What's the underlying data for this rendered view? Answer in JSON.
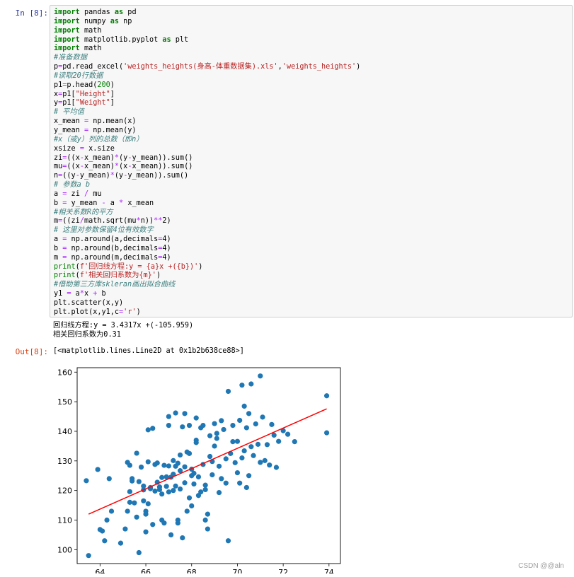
{
  "cell": {
    "in_prompt": "In  [8]:",
    "out_prompt": "Out[8]:",
    "code_lines": [
      [
        [
          "import",
          "kw"
        ],
        [
          " pandas ",
          ""
        ],
        [
          "as",
          "kw"
        ],
        [
          " pd",
          ""
        ]
      ],
      [
        [
          "import",
          "kw"
        ],
        [
          " numpy ",
          ""
        ],
        [
          "as",
          "kw"
        ],
        [
          " np",
          ""
        ]
      ],
      [
        [
          "import",
          "kw"
        ],
        [
          " math",
          ""
        ]
      ],
      [
        [
          "import",
          "kw"
        ],
        [
          " matplotlib.pyplot ",
          ""
        ],
        [
          "as",
          "kw"
        ],
        [
          " plt",
          ""
        ]
      ],
      [
        [
          "import",
          "kw"
        ],
        [
          " math",
          ""
        ]
      ],
      [
        [
          "#准备数据",
          "cm"
        ]
      ],
      [
        [
          "p",
          ""
        ],
        [
          "=",
          "op"
        ],
        [
          "pd.read_excel(",
          ""
        ],
        [
          "'weights_heights(身高-体重数据集).xls'",
          "str"
        ],
        [
          ",",
          ""
        ],
        [
          "'weights_heights'",
          "str"
        ],
        [
          ")",
          ""
        ]
      ],
      [
        [
          "#读取20行数据",
          "cm"
        ]
      ],
      [
        [
          "p1",
          ""
        ],
        [
          "=",
          "op"
        ],
        [
          "p.head(",
          ""
        ],
        [
          "200",
          "num"
        ],
        [
          ")",
          ""
        ]
      ],
      [
        [
          "x",
          ""
        ],
        [
          "=",
          "op"
        ],
        [
          "p1[",
          ""
        ],
        [
          "\"Height\"",
          "str"
        ],
        [
          "]",
          ""
        ]
      ],
      [
        [
          "y",
          ""
        ],
        [
          "=",
          "op"
        ],
        [
          "p1[",
          ""
        ],
        [
          "\"Weight\"",
          "str"
        ],
        [
          "]",
          ""
        ]
      ],
      [
        [
          "# 平均值",
          "cm"
        ]
      ],
      [
        [
          "x_mean ",
          ""
        ],
        [
          "=",
          "op"
        ],
        [
          " np.mean(x)",
          ""
        ]
      ],
      [
        [
          "y_mean ",
          ""
        ],
        [
          "=",
          "op"
        ],
        [
          " np.mean(y)",
          ""
        ]
      ],
      [
        [
          "#x（或y）列的总数（即n）",
          "cm"
        ]
      ],
      [
        [
          "xsize ",
          ""
        ],
        [
          "=",
          "op"
        ],
        [
          " x.size",
          ""
        ]
      ],
      [
        [
          "zi",
          ""
        ],
        [
          "=",
          "op"
        ],
        [
          "((x",
          ""
        ],
        [
          "-",
          "op"
        ],
        [
          "x_mean)",
          ""
        ],
        [
          "*",
          "op"
        ],
        [
          "(y",
          ""
        ],
        [
          "-",
          "op"
        ],
        [
          "y_mean)).sum()",
          ""
        ]
      ],
      [
        [
          "mu",
          ""
        ],
        [
          "=",
          "op"
        ],
        [
          "((x",
          ""
        ],
        [
          "-",
          "op"
        ],
        [
          "x_mean)",
          ""
        ],
        [
          "*",
          "op"
        ],
        [
          "(x",
          ""
        ],
        [
          "-",
          "op"
        ],
        [
          "x_mean)).sum()",
          ""
        ]
      ],
      [
        [
          "n",
          ""
        ],
        [
          "=",
          "op"
        ],
        [
          "((y",
          ""
        ],
        [
          "-",
          "op"
        ],
        [
          "y_mean)",
          ""
        ],
        [
          "*",
          "op"
        ],
        [
          "(y",
          ""
        ],
        [
          "-",
          "op"
        ],
        [
          "y_mean)).sum()",
          ""
        ]
      ],
      [
        [
          "# 参数a b",
          "cm"
        ]
      ],
      [
        [
          "a ",
          ""
        ],
        [
          "=",
          "op"
        ],
        [
          " zi ",
          ""
        ],
        [
          "/",
          "op"
        ],
        [
          " mu",
          ""
        ]
      ],
      [
        [
          "b ",
          ""
        ],
        [
          "=",
          "op"
        ],
        [
          " y_mean ",
          ""
        ],
        [
          "-",
          "op"
        ],
        [
          " a ",
          ""
        ],
        [
          "*",
          "op"
        ],
        [
          " x_mean",
          ""
        ]
      ],
      [
        [
          "#相关系数R的平方",
          "cm"
        ]
      ],
      [
        [
          "m",
          ""
        ],
        [
          "=",
          "op"
        ],
        [
          "((zi",
          ""
        ],
        [
          "/",
          "op"
        ],
        [
          "math.sqrt(mu",
          ""
        ],
        [
          "*",
          "op"
        ],
        [
          "n))",
          ""
        ],
        [
          "**",
          "op"
        ],
        [
          "2",
          ""
        ],
        [
          ")",
          ""
        ]
      ],
      [
        [
          "# 这里对参数保留4位有效数字",
          "cm"
        ]
      ],
      [
        [
          "a ",
          ""
        ],
        [
          "=",
          "op"
        ],
        [
          " np.around(a,decimals",
          ""
        ],
        [
          "=",
          "op"
        ],
        [
          "4",
          ""
        ],
        [
          ")",
          ""
        ]
      ],
      [
        [
          "b ",
          ""
        ],
        [
          "=",
          "op"
        ],
        [
          " np.around(b,decimals",
          ""
        ],
        [
          "=",
          "op"
        ],
        [
          "4",
          ""
        ],
        [
          ")",
          ""
        ]
      ],
      [
        [
          "m ",
          ""
        ],
        [
          "=",
          "op"
        ],
        [
          " np.around(m,decimals",
          ""
        ],
        [
          "=",
          "op"
        ],
        [
          "4",
          ""
        ],
        [
          ")",
          ""
        ]
      ],
      [
        [
          "print",
          "fn"
        ],
        [
          "(",
          ""
        ],
        [
          "f'回归线方程:y = {a}x +({b})'",
          "str"
        ],
        [
          ")",
          ""
        ]
      ],
      [
        [
          "print",
          "fn"
        ],
        [
          "(",
          ""
        ],
        [
          "f'相关回归系数为{m}'",
          "str"
        ],
        [
          ")",
          ""
        ]
      ],
      [
        [
          "#借助第三方库skleran画出拟合曲线",
          "cm"
        ]
      ],
      [
        [
          "y1 ",
          ""
        ],
        [
          "=",
          "op"
        ],
        [
          " a",
          ""
        ],
        [
          "*",
          "op"
        ],
        [
          "x ",
          ""
        ],
        [
          "+",
          "op"
        ],
        [
          " b",
          ""
        ]
      ],
      [
        [
          "plt.scatter(x,y)",
          ""
        ]
      ],
      [
        [
          "plt.plot(x,y1,c",
          ""
        ],
        [
          "=",
          "op"
        ],
        [
          "'r'",
          "str"
        ],
        [
          ")",
          ""
        ]
      ]
    ],
    "stdout_lines": [
      "回归线方程:y = 3.4317x +(-105.959)",
      "相关回归系数为0.31"
    ],
    "out_repr": "[<matplotlib.lines.Line2D at 0x1b2b638ce88>]"
  },
  "colors": {
    "kw": "#008000",
    "cm": "#408080",
    "str": "#ba2121",
    "num": "#008000",
    "op": "#aa22ff",
    "fn": "#008000",
    "scatter": "#1f77b4",
    "fit_line": "#ff0000"
  },
  "chart_data": {
    "type": "scatter",
    "title": "",
    "xlabel": "",
    "ylabel": "",
    "xlim": [
      63.0,
      74.5
    ],
    "ylim": [
      95.3,
      161.5
    ],
    "xticks": [
      64,
      66,
      68,
      70,
      72,
      74
    ],
    "yticks": [
      100,
      110,
      120,
      130,
      140,
      150,
      160
    ],
    "grid": false,
    "fit_line": {
      "x": [
        63.5,
        73.9
      ],
      "y": [
        112.0,
        147.6
      ]
    },
    "points": [
      [
        63.4,
        123.3
      ],
      [
        63.5,
        98.0
      ],
      [
        63.9,
        127.1
      ],
      [
        64.0,
        106.8
      ],
      [
        64.1,
        106.3
      ],
      [
        64.2,
        103.0
      ],
      [
        64.3,
        110.0
      ],
      [
        64.4,
        124.0
      ],
      [
        64.5,
        113.0
      ],
      [
        64.9,
        102.2
      ],
      [
        65.1,
        107.0
      ],
      [
        65.2,
        113.0
      ],
      [
        65.2,
        129.5
      ],
      [
        65.3,
        119.6
      ],
      [
        65.3,
        116.0
      ],
      [
        65.3,
        128.5
      ],
      [
        65.4,
        124.0
      ],
      [
        65.4,
        123.2
      ],
      [
        65.5,
        115.8
      ],
      [
        65.6,
        111.0
      ],
      [
        65.6,
        132.6
      ],
      [
        65.7,
        123.0
      ],
      [
        65.7,
        99.0
      ],
      [
        65.8,
        127.9
      ],
      [
        65.9,
        116.5
      ],
      [
        65.9,
        120.2
      ],
      [
        65.9,
        121.5
      ],
      [
        66.0,
        113.0
      ],
      [
        66.0,
        112.0
      ],
      [
        66.0,
        106.0
      ],
      [
        66.1,
        129.7
      ],
      [
        66.1,
        140.5
      ],
      [
        66.1,
        115.5
      ],
      [
        66.2,
        121.0
      ],
      [
        66.2,
        120.6
      ],
      [
        66.3,
        108.5
      ],
      [
        66.3,
        141.0
      ],
      [
        66.4,
        128.8
      ],
      [
        66.4,
        119.8
      ],
      [
        66.5,
        129.3
      ],
      [
        66.5,
        122.8
      ],
      [
        66.6,
        120.3
      ],
      [
        66.6,
        121.2
      ],
      [
        66.7,
        124.4
      ],
      [
        66.7,
        118.8
      ],
      [
        66.7,
        110.0
      ],
      [
        66.8,
        109.0
      ],
      [
        66.8,
        128.5
      ],
      [
        66.9,
        121.4
      ],
      [
        66.9,
        124.6
      ],
      [
        67.0,
        145.0
      ],
      [
        67.0,
        142.0
      ],
      [
        67.0,
        128.3
      ],
      [
        67.0,
        119.5
      ],
      [
        67.1,
        124.5
      ],
      [
        67.1,
        105.0
      ],
      [
        67.2,
        125.5
      ],
      [
        67.2,
        120.0
      ],
      [
        67.2,
        130.1
      ],
      [
        67.3,
        146.2
      ],
      [
        67.3,
        128.2
      ],
      [
        67.3,
        121.5
      ],
      [
        67.4,
        129.2
      ],
      [
        67.4,
        110.0
      ],
      [
        67.4,
        109.0
      ],
      [
        67.5,
        126.7
      ],
      [
        67.5,
        120.5
      ],
      [
        67.5,
        132.0
      ],
      [
        67.6,
        141.5
      ],
      [
        67.6,
        104.0
      ],
      [
        67.7,
        146.0
      ],
      [
        67.7,
        122.6
      ],
      [
        67.7,
        128.0
      ],
      [
        67.8,
        133.0
      ],
      [
        67.8,
        113.0
      ],
      [
        67.9,
        142.0
      ],
      [
        67.9,
        117.5
      ],
      [
        67.9,
        132.5
      ],
      [
        68.0,
        127.2
      ],
      [
        68.0,
        114.8
      ],
      [
        68.0,
        125.0
      ],
      [
        68.1,
        122.2
      ],
      [
        68.1,
        125.8
      ],
      [
        68.2,
        144.5
      ],
      [
        68.2,
        137.0
      ],
      [
        68.2,
        136.2
      ],
      [
        68.3,
        124.6
      ],
      [
        68.3,
        118.3
      ],
      [
        68.4,
        119.5
      ],
      [
        68.4,
        141.2
      ],
      [
        68.5,
        142.0
      ],
      [
        68.5,
        128.8
      ],
      [
        68.6,
        121.8
      ],
      [
        68.6,
        120.3
      ],
      [
        68.6,
        110.0
      ],
      [
        68.7,
        107.0
      ],
      [
        68.7,
        112.0
      ],
      [
        68.8,
        138.5
      ],
      [
        68.8,
        131.5
      ],
      [
        68.9,
        129.8
      ],
      [
        68.9,
        125.3
      ],
      [
        69.0,
        142.6
      ],
      [
        69.0,
        135.0
      ],
      [
        69.1,
        139.3
      ],
      [
        69.1,
        137.6
      ],
      [
        69.2,
        128.2
      ],
      [
        69.2,
        119.3
      ],
      [
        69.3,
        124.0
      ],
      [
        69.3,
        143.6
      ],
      [
        69.4,
        140.6
      ],
      [
        69.5,
        130.7
      ],
      [
        69.5,
        122.5
      ],
      [
        69.6,
        103.0
      ],
      [
        69.6,
        153.5
      ],
      [
        69.7,
        132.5
      ],
      [
        69.8,
        142.0
      ],
      [
        69.8,
        136.5
      ],
      [
        69.9,
        129.4
      ],
      [
        70.0,
        126.0
      ],
      [
        70.0,
        136.6
      ],
      [
        70.1,
        122.5
      ],
      [
        70.1,
        143.7
      ],
      [
        70.2,
        155.6
      ],
      [
        70.2,
        131.0
      ],
      [
        70.3,
        148.5
      ],
      [
        70.3,
        133.4
      ],
      [
        70.4,
        141.2
      ],
      [
        70.4,
        121.0
      ],
      [
        70.5,
        146.0
      ],
      [
        70.5,
        125.0
      ],
      [
        70.6,
        156.0
      ],
      [
        70.6,
        134.8
      ],
      [
        70.7,
        131.8
      ],
      [
        70.8,
        142.5
      ],
      [
        70.9,
        135.6
      ],
      [
        71.0,
        129.5
      ],
      [
        71.0,
        158.7
      ],
      [
        71.1,
        144.8
      ],
      [
        71.2,
        130.1
      ],
      [
        71.3,
        135.5
      ],
      [
        71.4,
        128.6
      ],
      [
        71.5,
        142.3
      ],
      [
        71.6,
        138.7
      ],
      [
        71.7,
        127.8
      ],
      [
        71.8,
        136.6
      ],
      [
        72.0,
        140.2
      ],
      [
        72.2,
        139.0
      ],
      [
        72.5,
        136.5
      ],
      [
        73.9,
        152.0
      ],
      [
        73.9,
        139.5
      ]
    ]
  },
  "watermark": "CSDN @@aln"
}
